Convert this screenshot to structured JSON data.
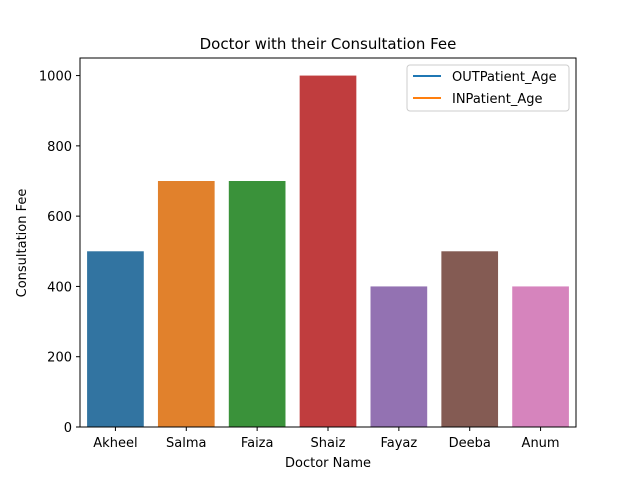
{
  "chart_data": {
    "type": "bar",
    "title": "Doctor with their Consultation Fee",
    "xlabel": "Doctor Name",
    "ylabel": "Consultation Fee",
    "categories": [
      "Akheel",
      "Salma",
      "Faiza",
      "Shaiz",
      "Fayaz",
      "Deeba",
      "Anum"
    ],
    "values": [
      500,
      700,
      700,
      1000,
      400,
      500,
      400
    ],
    "colors": [
      "#3274a1",
      "#e1812c",
      "#3a923a",
      "#c03d3e",
      "#9372b2",
      "#845b53",
      "#d684bd"
    ],
    "ylim": [
      0,
      1050
    ],
    "yticks": [
      0,
      200,
      400,
      600,
      800,
      1000
    ],
    "grid": false,
    "legend": {
      "placement": "upper-right",
      "entries": [
        {
          "label": "OUTPatient_Age",
          "color": "#1f77b4"
        },
        {
          "label": "INPatient_Age",
          "color": "#ff7f0e"
        }
      ]
    }
  }
}
